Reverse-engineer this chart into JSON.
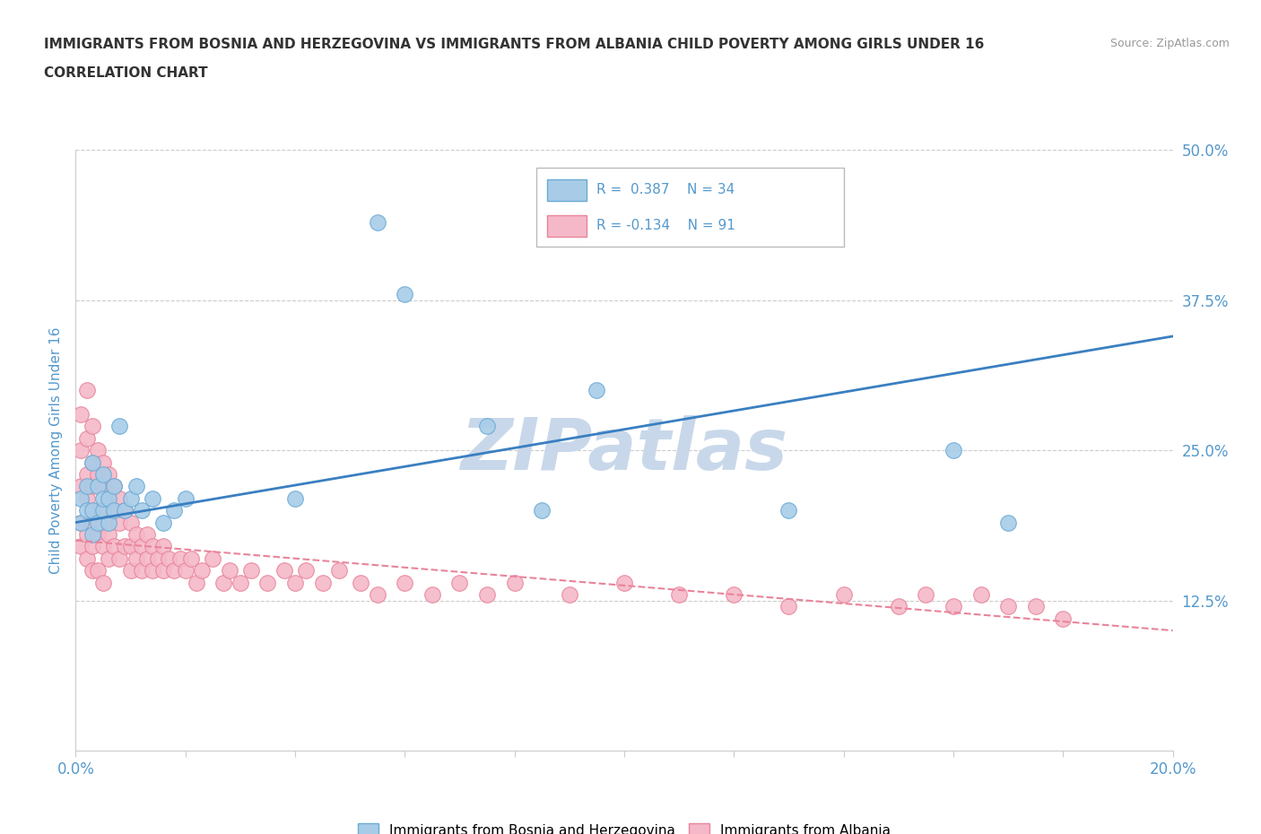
{
  "title_line1": "IMMIGRANTS FROM BOSNIA AND HERZEGOVINA VS IMMIGRANTS FROM ALBANIA CHILD POVERTY AMONG GIRLS UNDER 16",
  "title_line2": "CORRELATION CHART",
  "source": "Source: ZipAtlas.com",
  "ylabel": "Child Poverty Among Girls Under 16",
  "xlim": [
    0.0,
    0.2
  ],
  "ylim": [
    0.0,
    0.5
  ],
  "xticks": [
    0.0,
    0.02,
    0.04,
    0.06,
    0.08,
    0.1,
    0.12,
    0.14,
    0.16,
    0.18,
    0.2
  ],
  "ytick_values": [
    0.0,
    0.125,
    0.25,
    0.375,
    0.5
  ],
  "bosnia_R": 0.387,
  "bosnia_N": 34,
  "albania_R": -0.134,
  "albania_N": 91,
  "bosnia_color": "#a8cce8",
  "albania_color": "#f5b8c8",
  "bosnia_edge_color": "#6aaad4",
  "albania_edge_color": "#e8849a",
  "trend_bosnia_color": "#3a7fc1",
  "trend_albania_color": "#e8849a",
  "watermark": "ZIPatlas",
  "watermark_color": "#c8d8ea",
  "grid_color": "#cccccc",
  "axis_color": "#5599cc",
  "title_color": "#333333",
  "bosnia_x": [
    0.001,
    0.001,
    0.002,
    0.002,
    0.003,
    0.003,
    0.003,
    0.004,
    0.004,
    0.005,
    0.005,
    0.005,
    0.006,
    0.006,
    0.007,
    0.007,
    0.008,
    0.009,
    0.01,
    0.011,
    0.012,
    0.014,
    0.016,
    0.018,
    0.02,
    0.04,
    0.055,
    0.06,
    0.075,
    0.085,
    0.095,
    0.13,
    0.16,
    0.17
  ],
  "bosnia_y": [
    0.19,
    0.21,
    0.2,
    0.22,
    0.18,
    0.2,
    0.24,
    0.19,
    0.22,
    0.2,
    0.21,
    0.23,
    0.19,
    0.21,
    0.2,
    0.22,
    0.27,
    0.2,
    0.21,
    0.22,
    0.2,
    0.21,
    0.19,
    0.2,
    0.21,
    0.21,
    0.44,
    0.38,
    0.27,
    0.2,
    0.3,
    0.2,
    0.25,
    0.19
  ],
  "albania_x": [
    0.001,
    0.001,
    0.001,
    0.001,
    0.001,
    0.002,
    0.002,
    0.002,
    0.002,
    0.002,
    0.002,
    0.003,
    0.003,
    0.003,
    0.003,
    0.003,
    0.003,
    0.004,
    0.004,
    0.004,
    0.004,
    0.004,
    0.005,
    0.005,
    0.005,
    0.005,
    0.005,
    0.006,
    0.006,
    0.006,
    0.006,
    0.007,
    0.007,
    0.007,
    0.008,
    0.008,
    0.008,
    0.009,
    0.009,
    0.01,
    0.01,
    0.01,
    0.011,
    0.011,
    0.012,
    0.012,
    0.013,
    0.013,
    0.014,
    0.014,
    0.015,
    0.016,
    0.016,
    0.017,
    0.018,
    0.019,
    0.02,
    0.021,
    0.022,
    0.023,
    0.025,
    0.027,
    0.028,
    0.03,
    0.032,
    0.035,
    0.038,
    0.04,
    0.042,
    0.045,
    0.048,
    0.052,
    0.055,
    0.06,
    0.065,
    0.07,
    0.075,
    0.08,
    0.09,
    0.1,
    0.11,
    0.12,
    0.13,
    0.14,
    0.15,
    0.155,
    0.16,
    0.165,
    0.17,
    0.175,
    0.18
  ],
  "albania_y": [
    0.28,
    0.25,
    0.22,
    0.19,
    0.17,
    0.3,
    0.26,
    0.23,
    0.21,
    0.18,
    0.16,
    0.27,
    0.24,
    0.22,
    0.19,
    0.17,
    0.15,
    0.25,
    0.23,
    0.2,
    0.18,
    0.15,
    0.24,
    0.22,
    0.19,
    0.17,
    0.14,
    0.23,
    0.21,
    0.18,
    0.16,
    0.22,
    0.2,
    0.17,
    0.21,
    0.19,
    0.16,
    0.2,
    0.17,
    0.19,
    0.17,
    0.15,
    0.18,
    0.16,
    0.17,
    0.15,
    0.18,
    0.16,
    0.17,
    0.15,
    0.16,
    0.17,
    0.15,
    0.16,
    0.15,
    0.16,
    0.15,
    0.16,
    0.14,
    0.15,
    0.16,
    0.14,
    0.15,
    0.14,
    0.15,
    0.14,
    0.15,
    0.14,
    0.15,
    0.14,
    0.15,
    0.14,
    0.13,
    0.14,
    0.13,
    0.14,
    0.13,
    0.14,
    0.13,
    0.14,
    0.13,
    0.13,
    0.12,
    0.13,
    0.12,
    0.13,
    0.12,
    0.13,
    0.12,
    0.12,
    0.11
  ],
  "bosnia_trend_x0": 0.0,
  "bosnia_trend_y0": 0.19,
  "bosnia_trend_x1": 0.2,
  "bosnia_trend_y1": 0.345,
  "albania_trend_x0": 0.0,
  "albania_trend_y0": 0.175,
  "albania_trend_x1": 0.2,
  "albania_trend_y1": 0.1
}
